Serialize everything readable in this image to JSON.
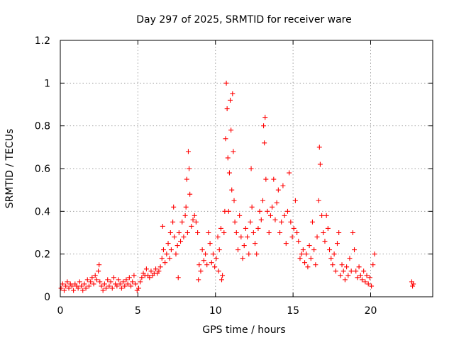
{
  "chart_data": {
    "type": "scatter",
    "title": "Day 297 of 2025, SRMTID for receiver ware",
    "xlabel": "GPS time / hours",
    "ylabel": "SRMTID / TECUs",
    "xlim": [
      0,
      24
    ],
    "ylim": [
      0,
      1.2
    ],
    "x_ticks": [
      0,
      5,
      10,
      15,
      20
    ],
    "x_tick_labels": [
      "0",
      "5",
      "10",
      "15",
      "20"
    ],
    "y_ticks": [
      0,
      0.2,
      0.4,
      0.6,
      0.8,
      1.0,
      1.2
    ],
    "y_tick_labels": [
      "0",
      "0.2",
      "0.4",
      "0.6",
      "0.8",
      "1",
      "1.2"
    ],
    "grid": true,
    "legend": "none",
    "color": "#ff0000",
    "marker": "plus",
    "series": [
      {
        "name": "SRMTID",
        "points": [
          [
            0.05,
            0.04
          ],
          [
            0.15,
            0.06
          ],
          [
            0.25,
            0.03
          ],
          [
            0.35,
            0.05
          ],
          [
            0.45,
            0.07
          ],
          [
            0.55,
            0.04
          ],
          [
            0.65,
            0.06
          ],
          [
            0.75,
            0.05
          ],
          [
            0.85,
            0.03
          ],
          [
            0.95,
            0.06
          ],
          [
            1.05,
            0.05
          ],
          [
            1.15,
            0.04
          ],
          [
            1.25,
            0.07
          ],
          [
            1.35,
            0.05
          ],
          [
            1.45,
            0.03
          ],
          [
            1.55,
            0.06
          ],
          [
            1.65,
            0.04
          ],
          [
            1.75,
            0.08
          ],
          [
            1.85,
            0.05
          ],
          [
            1.95,
            0.07
          ],
          [
            2.05,
            0.09
          ],
          [
            2.15,
            0.06
          ],
          [
            2.25,
            0.1
          ],
          [
            2.35,
            0.08
          ],
          [
            2.45,
            0.12
          ],
          [
            2.5,
            0.15
          ],
          [
            2.55,
            0.07
          ],
          [
            2.65,
            0.05
          ],
          [
            2.75,
            0.03
          ],
          [
            2.85,
            0.06
          ],
          [
            2.95,
            0.04
          ],
          [
            3.05,
            0.08
          ],
          [
            3.15,
            0.05
          ],
          [
            3.25,
            0.07
          ],
          [
            3.35,
            0.04
          ],
          [
            3.45,
            0.09
          ],
          [
            3.55,
            0.06
          ],
          [
            3.65,
            0.05
          ],
          [
            3.75,
            0.08
          ],
          [
            3.85,
            0.06
          ],
          [
            3.95,
            0.04
          ],
          [
            4.05,
            0.07
          ],
          [
            4.15,
            0.05
          ],
          [
            4.25,
            0.08
          ],
          [
            4.35,
            0.06
          ],
          [
            4.45,
            0.09
          ],
          [
            4.55,
            0.05
          ],
          [
            4.65,
            0.07
          ],
          [
            4.75,
            0.1
          ],
          [
            4.85,
            0.06
          ],
          [
            4.95,
            0.03
          ],
          [
            5.05,
            0.04
          ],
          [
            5.15,
            0.07
          ],
          [
            5.25,
            0.09
          ],
          [
            5.35,
            0.11
          ],
          [
            5.45,
            0.1
          ],
          [
            5.55,
            0.13
          ],
          [
            5.65,
            0.1
          ],
          [
            5.75,
            0.09
          ],
          [
            5.85,
            0.12
          ],
          [
            5.95,
            0.1
          ],
          [
            6.05,
            0.11
          ],
          [
            6.15,
            0.13
          ],
          [
            6.25,
            0.11
          ],
          [
            6.35,
            0.12
          ],
          [
            6.45,
            0.14
          ],
          [
            6.55,
            0.18
          ],
          [
            6.6,
            0.33
          ],
          [
            6.65,
            0.22
          ],
          [
            6.75,
            0.16
          ],
          [
            6.85,
            0.2
          ],
          [
            6.95,
            0.25
          ],
          [
            7.05,
            0.18
          ],
          [
            7.1,
            0.3
          ],
          [
            7.15,
            0.22
          ],
          [
            7.25,
            0.35
          ],
          [
            7.3,
            0.42
          ],
          [
            7.35,
            0.28
          ],
          [
            7.45,
            0.2
          ],
          [
            7.55,
            0.24
          ],
          [
            7.6,
            0.09
          ],
          [
            7.65,
            0.3
          ],
          [
            7.75,
            0.26
          ],
          [
            7.85,
            0.35
          ],
          [
            7.95,
            0.28
          ],
          [
            8.05,
            0.38
          ],
          [
            8.1,
            0.42
          ],
          [
            8.15,
            0.55
          ],
          [
            8.2,
            0.3
          ],
          [
            8.25,
            0.68
          ],
          [
            8.3,
            0.6
          ],
          [
            8.35,
            0.48
          ],
          [
            8.45,
            0.33
          ],
          [
            8.55,
            0.36
          ],
          [
            8.65,
            0.38
          ],
          [
            8.75,
            0.35
          ],
          [
            8.85,
            0.3
          ],
          [
            8.9,
            0.08
          ],
          [
            8.95,
            0.15
          ],
          [
            9.05,
            0.12
          ],
          [
            9.15,
            0.22
          ],
          [
            9.25,
            0.17
          ],
          [
            9.35,
            0.2
          ],
          [
            9.45,
            0.15
          ],
          [
            9.55,
            0.3
          ],
          [
            9.65,
            0.25
          ],
          [
            9.75,
            0.16
          ],
          [
            9.85,
            0.2
          ],
          [
            9.95,
            0.14
          ],
          [
            10.05,
            0.18
          ],
          [
            10.15,
            0.28
          ],
          [
            10.2,
            0.12
          ],
          [
            10.25,
            0.22
          ],
          [
            10.35,
            0.32
          ],
          [
            10.4,
            0.08
          ],
          [
            10.45,
            0.1
          ],
          [
            10.55,
            0.3
          ],
          [
            10.6,
            0.4
          ],
          [
            10.65,
            0.74
          ],
          [
            10.7,
            1.0
          ],
          [
            10.75,
            0.88
          ],
          [
            10.8,
            0.65
          ],
          [
            10.85,
            0.4
          ],
          [
            10.9,
            0.58
          ],
          [
            10.95,
            0.92
          ],
          [
            11.0,
            0.78
          ],
          [
            11.05,
            0.5
          ],
          [
            11.1,
            0.95
          ],
          [
            11.15,
            0.68
          ],
          [
            11.2,
            0.45
          ],
          [
            11.25,
            0.35
          ],
          [
            11.35,
            0.3
          ],
          [
            11.45,
            0.22
          ],
          [
            11.55,
            0.38
          ],
          [
            11.65,
            0.28
          ],
          [
            11.75,
            0.18
          ],
          [
            11.85,
            0.24
          ],
          [
            11.95,
            0.32
          ],
          [
            12.05,
            0.28
          ],
          [
            12.15,
            0.2
          ],
          [
            12.25,
            0.35
          ],
          [
            12.3,
            0.6
          ],
          [
            12.35,
            0.42
          ],
          [
            12.45,
            0.3
          ],
          [
            12.55,
            0.25
          ],
          [
            12.65,
            0.2
          ],
          [
            12.75,
            0.32
          ],
          [
            12.85,
            0.4
          ],
          [
            12.95,
            0.36
          ],
          [
            13.05,
            0.45
          ],
          [
            13.1,
            0.8
          ],
          [
            13.15,
            0.72
          ],
          [
            13.2,
            0.84
          ],
          [
            13.25,
            0.55
          ],
          [
            13.35,
            0.4
          ],
          [
            13.45,
            0.3
          ],
          [
            13.55,
            0.38
          ],
          [
            13.65,
            0.42
          ],
          [
            13.75,
            0.55
          ],
          [
            13.85,
            0.36
          ],
          [
            13.95,
            0.44
          ],
          [
            14.05,
            0.5
          ],
          [
            14.15,
            0.3
          ],
          [
            14.25,
            0.35
          ],
          [
            14.35,
            0.52
          ],
          [
            14.45,
            0.38
          ],
          [
            14.55,
            0.25
          ],
          [
            14.65,
            0.4
          ],
          [
            14.75,
            0.58
          ],
          [
            14.85,
            0.35
          ],
          [
            14.95,
            0.28
          ],
          [
            15.05,
            0.32
          ],
          [
            15.15,
            0.45
          ],
          [
            15.25,
            0.3
          ],
          [
            15.35,
            0.26
          ],
          [
            15.45,
            0.18
          ],
          [
            15.55,
            0.2
          ],
          [
            15.65,
            0.22
          ],
          [
            15.75,
            0.16
          ],
          [
            15.85,
            0.2
          ],
          [
            15.95,
            0.14
          ],
          [
            16.05,
            0.24
          ],
          [
            16.15,
            0.18
          ],
          [
            16.25,
            0.35
          ],
          [
            16.35,
            0.22
          ],
          [
            16.45,
            0.15
          ],
          [
            16.55,
            0.28
          ],
          [
            16.65,
            0.45
          ],
          [
            16.7,
            0.7
          ],
          [
            16.75,
            0.62
          ],
          [
            16.85,
            0.38
          ],
          [
            16.95,
            0.3
          ],
          [
            17.05,
            0.26
          ],
          [
            17.15,
            0.38
          ],
          [
            17.25,
            0.32
          ],
          [
            17.35,
            0.22
          ],
          [
            17.45,
            0.18
          ],
          [
            17.55,
            0.15
          ],
          [
            17.65,
            0.2
          ],
          [
            17.75,
            0.12
          ],
          [
            17.85,
            0.25
          ],
          [
            17.95,
            0.3
          ],
          [
            18.05,
            0.1
          ],
          [
            18.15,
            0.15
          ],
          [
            18.25,
            0.12
          ],
          [
            18.35,
            0.08
          ],
          [
            18.45,
            0.14
          ],
          [
            18.55,
            0.1
          ],
          [
            18.65,
            0.18
          ],
          [
            18.75,
            0.12
          ],
          [
            18.85,
            0.3
          ],
          [
            18.95,
            0.22
          ],
          [
            19.05,
            0.12
          ],
          [
            19.15,
            0.09
          ],
          [
            19.25,
            0.14
          ],
          [
            19.35,
            0.1
          ],
          [
            19.45,
            0.08
          ],
          [
            19.55,
            0.12
          ],
          [
            19.65,
            0.07
          ],
          [
            19.75,
            0.1
          ],
          [
            19.85,
            0.06
          ],
          [
            19.95,
            0.09
          ],
          [
            20.05,
            0.05
          ],
          [
            20.15,
            0.15
          ],
          [
            20.25,
            0.2
          ],
          [
            22.65,
            0.07
          ],
          [
            22.7,
            0.05
          ],
          [
            22.75,
            0.06
          ]
        ]
      }
    ]
  }
}
